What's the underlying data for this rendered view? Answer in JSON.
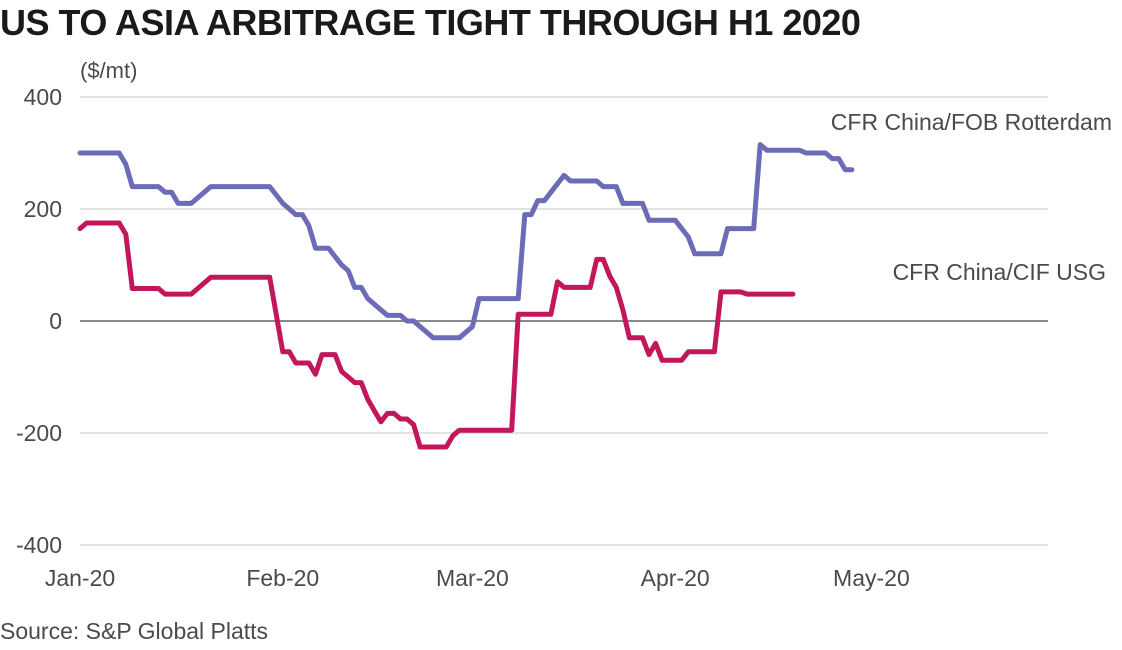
{
  "title": "US TO ASIA ARBITRAGE TIGHT THROUGH H1 2020",
  "unit_label": "($/mt)",
  "source": "Source: S&P Global Platts",
  "chart_data": {
    "type": "line",
    "title": "US TO ASIA ARBITRAGE TIGHT THROUGH H1 2020",
    "ylabel": "($/mt)",
    "xlabel": "",
    "ylim": [
      -400,
      400
    ],
    "yticks": [
      400,
      200,
      0,
      -200,
      -400
    ],
    "xlim": [
      "2020-01-01",
      "2020-05-28"
    ],
    "xticks": [
      {
        "date": "2020-01-01",
        "label": "Jan-20"
      },
      {
        "date": "2020-02-01",
        "label": "Feb-20"
      },
      {
        "date": "2020-03-01",
        "label": "Mar-20"
      },
      {
        "date": "2020-04-01",
        "label": "Apr-20"
      },
      {
        "date": "2020-05-01",
        "label": "May-20"
      }
    ],
    "grid": true,
    "series": [
      {
        "name": "CFR China/FOB Rotterdam",
        "color": "#6b6bb8",
        "points": [
          [
            "2020-01-01",
            300
          ],
          [
            "2020-01-02",
            300
          ],
          [
            "2020-01-07",
            300
          ],
          [
            "2020-01-08",
            280
          ],
          [
            "2020-01-09",
            240
          ],
          [
            "2020-01-13",
            240
          ],
          [
            "2020-01-14",
            230
          ],
          [
            "2020-01-15",
            230
          ],
          [
            "2020-01-16",
            210
          ],
          [
            "2020-01-17",
            210
          ],
          [
            "2020-01-18",
            210
          ],
          [
            "2020-01-20",
            230
          ],
          [
            "2020-01-21",
            240
          ],
          [
            "2020-01-30",
            240
          ],
          [
            "2020-02-01",
            210
          ],
          [
            "2020-02-03",
            190
          ],
          [
            "2020-02-04",
            190
          ],
          [
            "2020-02-05",
            170
          ],
          [
            "2020-02-06",
            130
          ],
          [
            "2020-02-07",
            130
          ],
          [
            "2020-02-08",
            130
          ],
          [
            "2020-02-10",
            100
          ],
          [
            "2020-02-11",
            90
          ],
          [
            "2020-02-12",
            60
          ],
          [
            "2020-02-13",
            60
          ],
          [
            "2020-02-14",
            40
          ],
          [
            "2020-02-15",
            30
          ],
          [
            "2020-02-17",
            10
          ],
          [
            "2020-02-19",
            10
          ],
          [
            "2020-02-20",
            0
          ],
          [
            "2020-02-21",
            0
          ],
          [
            "2020-02-22",
            -10
          ],
          [
            "2020-02-24",
            -30
          ],
          [
            "2020-02-28",
            -30
          ],
          [
            "2020-03-01",
            -10
          ],
          [
            "2020-03-02",
            40
          ],
          [
            "2020-03-08",
            40
          ],
          [
            "2020-03-09",
            190
          ],
          [
            "2020-03-10",
            190
          ],
          [
            "2020-03-11",
            215
          ],
          [
            "2020-03-12",
            215
          ],
          [
            "2020-03-13",
            230
          ],
          [
            "2020-03-15",
            260
          ],
          [
            "2020-03-16",
            250
          ],
          [
            "2020-03-20",
            250
          ],
          [
            "2020-03-21",
            240
          ],
          [
            "2020-03-23",
            240
          ],
          [
            "2020-03-24",
            210
          ],
          [
            "2020-03-27",
            210
          ],
          [
            "2020-03-28",
            180
          ],
          [
            "2020-03-31",
            180
          ],
          [
            "2020-04-01",
            180
          ],
          [
            "2020-04-03",
            150
          ],
          [
            "2020-04-04",
            120
          ],
          [
            "2020-04-08",
            120
          ],
          [
            "2020-04-09",
            165
          ],
          [
            "2020-04-13",
            165
          ],
          [
            "2020-04-14",
            315
          ],
          [
            "2020-04-15",
            305
          ],
          [
            "2020-04-20",
            305
          ],
          [
            "2020-04-21",
            300
          ],
          [
            "2020-04-24",
            300
          ],
          [
            "2020-04-25",
            290
          ],
          [
            "2020-04-26",
            290
          ],
          [
            "2020-04-27",
            270
          ],
          [
            "2020-04-28",
            270
          ]
        ]
      },
      {
        "name": "CFR China/CIF USG",
        "color": "#c2185b",
        "points": [
          [
            "2020-01-01",
            165
          ],
          [
            "2020-01-02",
            175
          ],
          [
            "2020-01-07",
            175
          ],
          [
            "2020-01-08",
            155
          ],
          [
            "2020-01-09",
            58
          ],
          [
            "2020-01-13",
            58
          ],
          [
            "2020-01-14",
            48
          ],
          [
            "2020-01-18",
            48
          ],
          [
            "2020-01-20",
            68
          ],
          [
            "2020-01-21",
            78
          ],
          [
            "2020-01-30",
            78
          ],
          [
            "2020-02-01",
            -55
          ],
          [
            "2020-02-02",
            -55
          ],
          [
            "2020-02-03",
            -75
          ],
          [
            "2020-02-05",
            -75
          ],
          [
            "2020-02-06",
            -95
          ],
          [
            "2020-02-07",
            -60
          ],
          [
            "2020-02-09",
            -60
          ],
          [
            "2020-02-10",
            -90
          ],
          [
            "2020-02-11",
            -100
          ],
          [
            "2020-02-12",
            -110
          ],
          [
            "2020-02-13",
            -110
          ],
          [
            "2020-02-14",
            -140
          ],
          [
            "2020-02-15",
            -160
          ],
          [
            "2020-02-16",
            -180
          ],
          [
            "2020-02-17",
            -165
          ],
          [
            "2020-02-18",
            -165
          ],
          [
            "2020-02-19",
            -175
          ],
          [
            "2020-02-20",
            -175
          ],
          [
            "2020-02-21",
            -185
          ],
          [
            "2020-02-22",
            -225
          ],
          [
            "2020-02-26",
            -225
          ],
          [
            "2020-02-27",
            -205
          ],
          [
            "2020-02-28",
            -195
          ],
          [
            "2020-03-02",
            -195
          ],
          [
            "2020-03-07",
            -195
          ],
          [
            "2020-03-08",
            12
          ],
          [
            "2020-03-13",
            12
          ],
          [
            "2020-03-14",
            70
          ],
          [
            "2020-03-15",
            60
          ],
          [
            "2020-03-19",
            60
          ],
          [
            "2020-03-20",
            110
          ],
          [
            "2020-03-21",
            110
          ],
          [
            "2020-03-22",
            80
          ],
          [
            "2020-03-23",
            60
          ],
          [
            "2020-03-24",
            20
          ],
          [
            "2020-03-25",
            -30
          ],
          [
            "2020-03-27",
            -30
          ],
          [
            "2020-03-28",
            -60
          ],
          [
            "2020-03-29",
            -40
          ],
          [
            "2020-03-30",
            -70
          ],
          [
            "2020-04-01",
            -70
          ],
          [
            "2020-04-02",
            -70
          ],
          [
            "2020-04-03",
            -55
          ],
          [
            "2020-04-07",
            -55
          ],
          [
            "2020-04-08",
            52
          ],
          [
            "2020-04-11",
            52
          ],
          [
            "2020-04-12",
            48
          ],
          [
            "2020-04-18",
            48
          ],
          [
            "2020-04-19",
            48
          ]
        ]
      }
    ]
  }
}
